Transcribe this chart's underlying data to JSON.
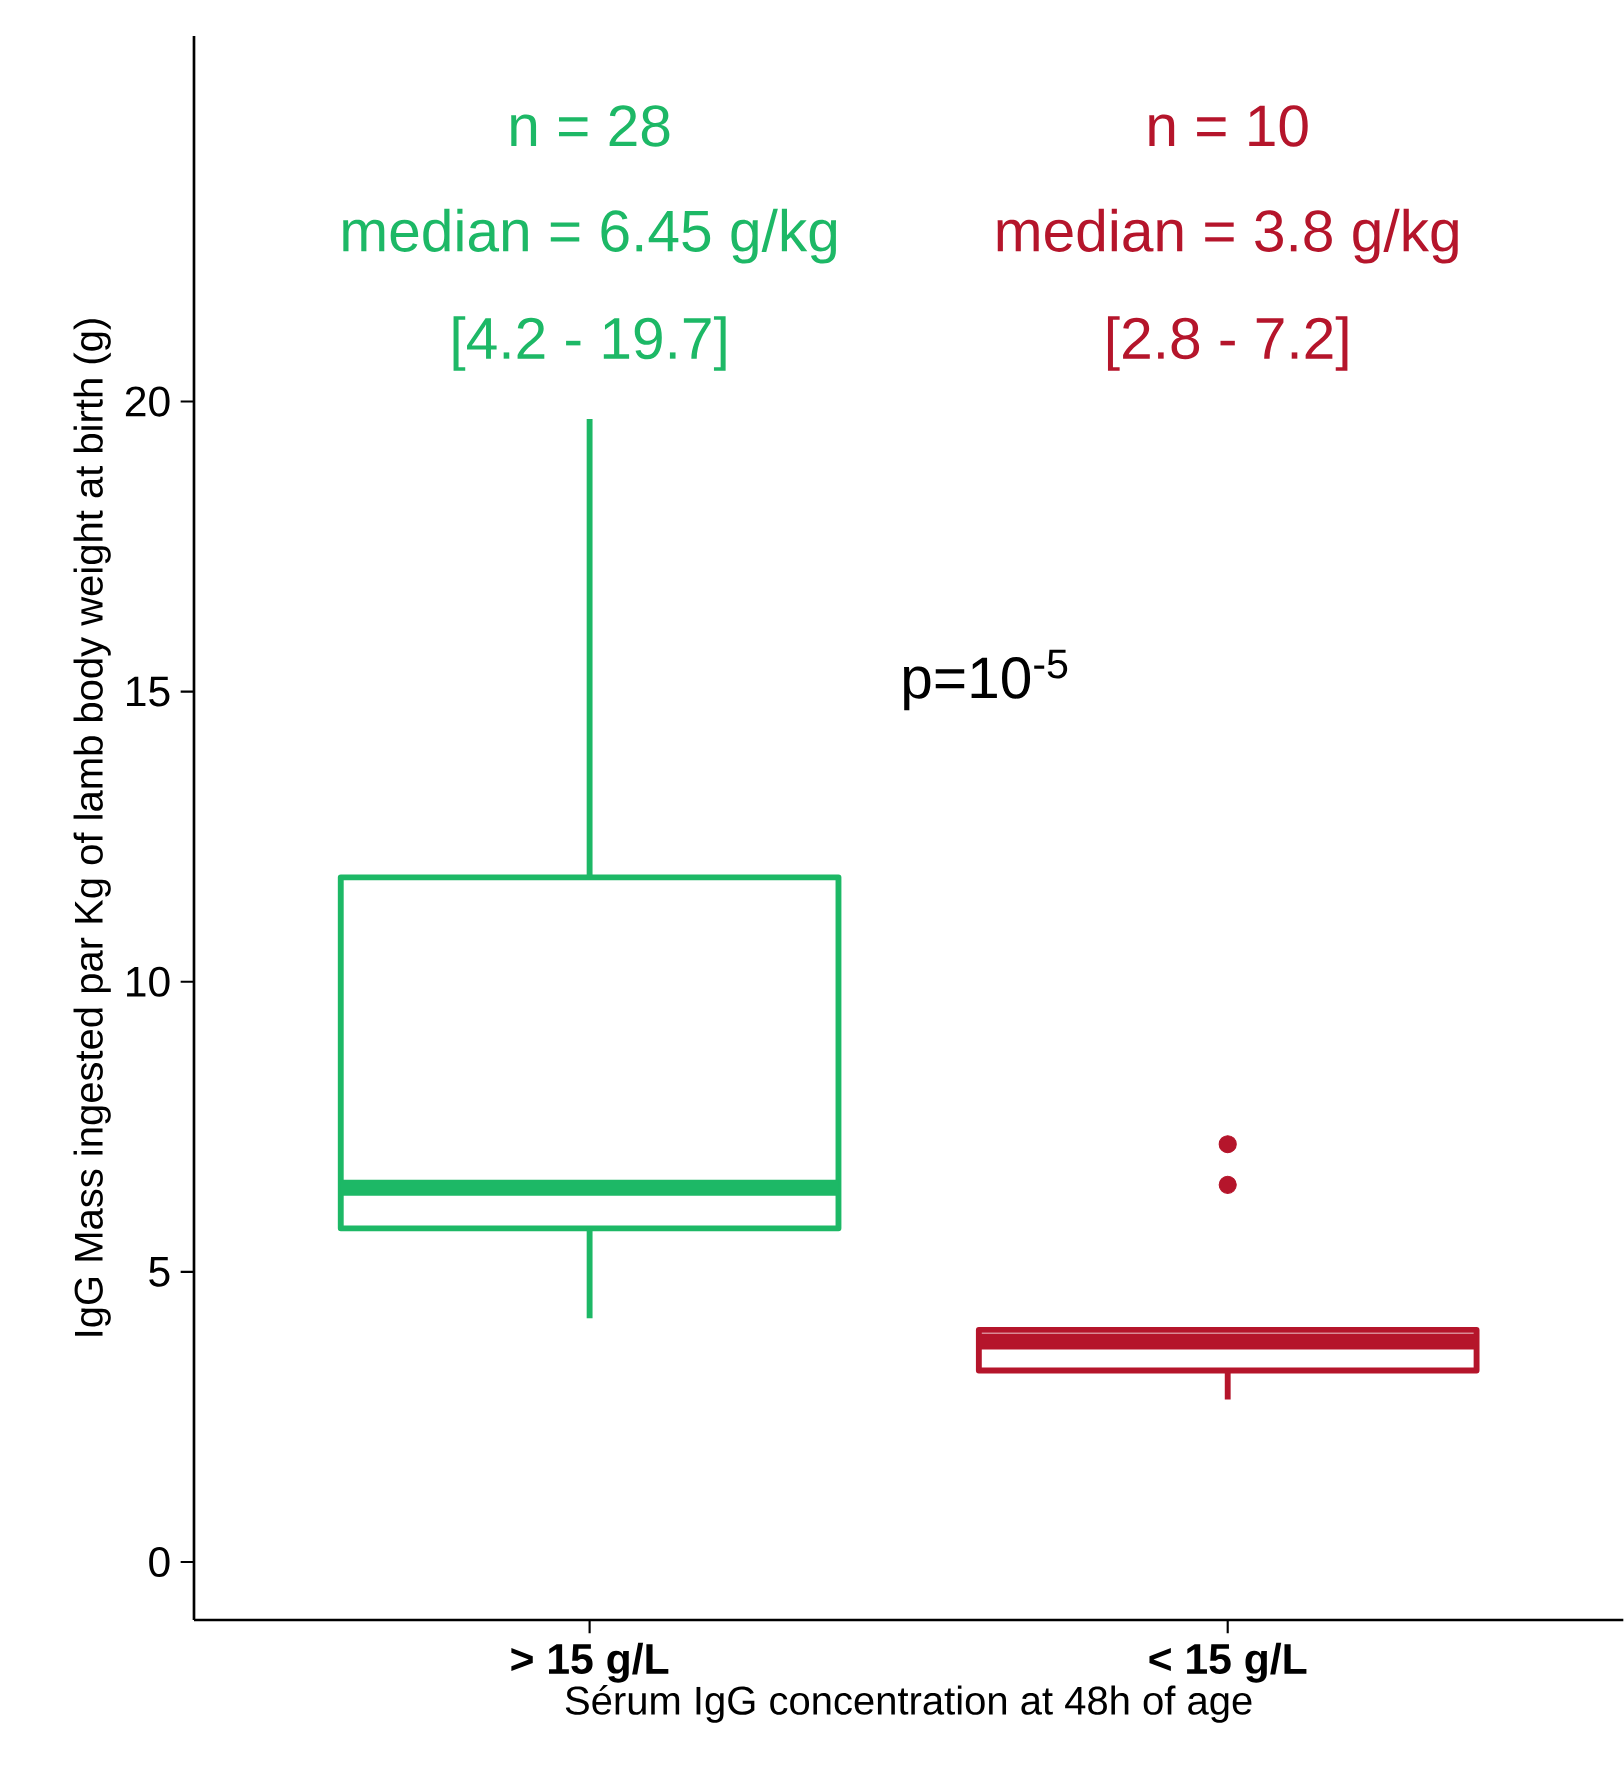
{
  "chart_data": {
    "type": "box",
    "xlabel": "Sérum IgG concentration at 48h of age",
    "ylabel": "IgG Mass ingested par Kg of lamb body weight at birth (g)",
    "categories": [
      "> 15 g/L",
      "< 15 g/L"
    ],
    "colors": [
      "#1db866",
      "#b5152b"
    ],
    "boxes": [
      {
        "low": 4.2,
        "q1": 5.75,
        "median": 6.45,
        "q3": 11.8,
        "high": 19.7
      },
      {
        "low": 2.8,
        "q1": 3.3,
        "median": 3.8,
        "q3": 4.0,
        "high": 4.0,
        "outliers": [
          6.5,
          7.2
        ]
      }
    ],
    "ylim": [
      -1,
      26.3
    ],
    "yticks": [
      0,
      5,
      10,
      15,
      20
    ],
    "annotations": [
      "n = 28",
      "median = 6.45 g/kg",
      "[4.2 - 19.7]",
      "n = 10",
      "median = 3.8 g/kg",
      "[2.8 - 7.2]",
      "p=10$^{-5}$"
    ],
    "grid": false
  }
}
